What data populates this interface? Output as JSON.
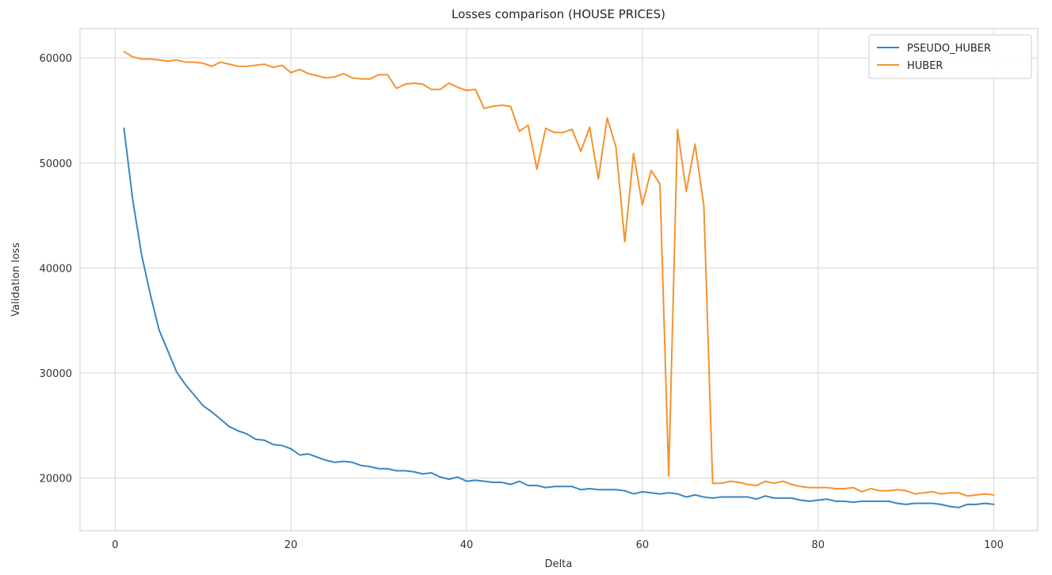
{
  "chart_data": {
    "type": "line",
    "title": "Losses comparison (HOUSE PRICES)",
    "xlabel": "Delta",
    "ylabel": "Validation loss",
    "xlim": [
      -4,
      105
    ],
    "ylim": [
      15000,
      62800
    ],
    "xticks": [
      0,
      20,
      40,
      60,
      80,
      100
    ],
    "yticks": [
      20000,
      30000,
      40000,
      50000,
      60000
    ],
    "grid": true,
    "legend_position": "top-right",
    "x": [
      1,
      2,
      3,
      4,
      5,
      6,
      7,
      8,
      9,
      10,
      11,
      12,
      13,
      14,
      15,
      16,
      17,
      18,
      19,
      20,
      21,
      22,
      23,
      24,
      25,
      26,
      27,
      28,
      29,
      30,
      31,
      32,
      33,
      34,
      35,
      36,
      37,
      38,
      39,
      40,
      41,
      42,
      43,
      44,
      45,
      46,
      47,
      48,
      49,
      50,
      51,
      52,
      53,
      54,
      55,
      56,
      57,
      58,
      59,
      60,
      61,
      62,
      63,
      64,
      65,
      66,
      67,
      68,
      69,
      70,
      71,
      72,
      73,
      74,
      75,
      76,
      77,
      78,
      79,
      80,
      81,
      82,
      83,
      84,
      85,
      86,
      87,
      88,
      89,
      90,
      91,
      92,
      93,
      94,
      95,
      96,
      97,
      98,
      99,
      100
    ],
    "series": [
      {
        "name": "PSEUDO_HUBER",
        "color": "#3a86c0",
        "values": [
          53300,
          46500,
          41300,
          37500,
          34100,
          32100,
          30100,
          28900,
          27900,
          26900,
          26300,
          25600,
          24900,
          24500,
          24200,
          23700,
          23600,
          23200,
          23100,
          22800,
          22200,
          22300,
          22000,
          21700,
          21500,
          21600,
          21500,
          21200,
          21100,
          20900,
          20900,
          20700,
          20700,
          20600,
          20400,
          20500,
          20100,
          19900,
          20100,
          19700,
          19800,
          19700,
          19600,
          19600,
          19400,
          19700,
          19300,
          19300,
          19100,
          19200,
          19200,
          19200,
          18900,
          19000,
          18900,
          18900,
          18900,
          18800,
          18500,
          18700,
          18600,
          18500,
          18600,
          18500,
          18200,
          18400,
          18200,
          18100,
          18200,
          18200,
          18200,
          18200,
          18000,
          18300,
          18100,
          18100,
          18100,
          17900,
          17800,
          17900,
          18000,
          17800,
          17800,
          17700,
          17800,
          17800,
          17800,
          17800,
          17600,
          17500,
          17600,
          17600,
          17600,
          17500,
          17300,
          17200,
          17500,
          17500,
          17600,
          17500
        ]
      },
      {
        "name": "HUBER",
        "color": "#f5922f",
        "values": [
          60600,
          60100,
          59900,
          59900,
          59800,
          59700,
          59800,
          59600,
          59600,
          59500,
          59200,
          59600,
          59400,
          59200,
          59200,
          59300,
          59400,
          59100,
          59300,
          58600,
          58900,
          58500,
          58300,
          58100,
          58200,
          58500,
          58100,
          58000,
          58000,
          58400,
          58400,
          57100,
          57500,
          57600,
          57500,
          57000,
          57000,
          57600,
          57200,
          56900,
          57000,
          55200,
          55400,
          55500,
          55400,
          53000,
          53600,
          49400,
          53300,
          52900,
          52900,
          53200,
          51100,
          53400,
          48500,
          54300,
          51500,
          42500,
          50900,
          46000,
          49300,
          48000,
          20200,
          53200,
          47300,
          51800,
          45900,
          19500,
          19500,
          19700,
          19600,
          19400,
          19300,
          19700,
          19500,
          19700,
          19400,
          19200,
          19100,
          19100,
          19100,
          19000,
          19000,
          19100,
          18700,
          19000,
          18800,
          18800,
          18900,
          18800,
          18500,
          18600,
          18700,
          18500,
          18600,
          18600,
          18300,
          18400,
          18500,
          18400
        ]
      }
    ]
  }
}
